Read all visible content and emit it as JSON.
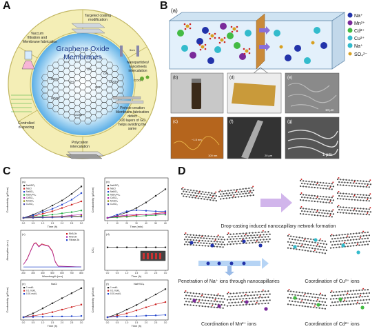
{
  "panels": {
    "A": "A",
    "B": "B",
    "C": "C",
    "D": "D"
  },
  "panelA": {
    "center_title_1": "Graphene Oxide",
    "center_title_2": "Membranes",
    "sectors": [
      "Targeted coating\nmodification",
      "Vaccum\nfiltration and\nMembrane fabrication",
      "Nanoparticles/\nnanosheets\nintercalation",
      "Pinhole creation\nMembrane fabrication\ndefect\n>20 layers of GO\nhelps avoiding the\nsame",
      "Polycation\nintercalation",
      "Controlled\nd-spacing"
    ],
    "ring_labels": [
      "Membrane fabrication",
      "Nanoparticle intercalation",
      "Pinhole creation",
      "Polycation intercalation",
      "Controlled d-spacing"
    ],
    "groups": [
      "OH",
      "OH",
      "COOH",
      "HOOC",
      "HOOC",
      "COOH",
      "COOH",
      "OH",
      "OH"
    ],
    "nm_label": "5nm"
  },
  "panelB": {
    "sub": [
      "(a)",
      "(b)",
      "(c)",
      "(d)",
      "(e)",
      "(f)",
      "(g)"
    ],
    "legend": [
      "Na⁺",
      "Mn²⁺",
      "Cd²⁺",
      "Cu²⁺",
      "Na⁺",
      "SO₄²⁻"
    ],
    "legend_colors": [
      "#2233aa",
      "#7a2a9a",
      "#44bb44",
      "#33bbcc",
      "#33bbcc",
      "#d8a020"
    ],
    "scale": [
      "10 μm",
      "20 μm",
      "1 μm",
      "100 nm"
    ],
    "afm_label": "~1.5 nm"
  },
  "panelC": {
    "sub": [
      "(a)",
      "(b)",
      "(c)",
      "(d)",
      "(e)",
      "(f)"
    ],
    "ylabel_cond": "Conductivity (μS/cm)",
    "xlabel_time": "Time (h)",
    "xlabel_wave": "Wavelength (nm)",
    "ylabel_abs": "Absorption (a.u.)",
    "ylabel_ratio": "C/C₀",
    "legend_a": [
      "NaHSO₄",
      "NaCl",
      "NaNO₃",
      "NaH₂PO₄",
      "CdSO₄",
      "MnSO₄",
      "CuSO₄"
    ],
    "legend_c": [
      "RhB-0h",
      "RhB-3h",
      "Filtrate-3h"
    ],
    "legend_e": [
      "1 mol/L",
      "0.1 mol/L",
      "0.01 mol/L"
    ],
    "legend_f": [
      "1 mol/L",
      "0.1 mol/L",
      "0.01 mol/L"
    ],
    "salt_e": "NaCl",
    "salt_f": "NaHSO₄",
    "xticks_time": [
      "0.0",
      "0.5",
      "1.0",
      "1.5",
      "2.0",
      "2.5",
      "3.0"
    ],
    "xticks_min": [
      "0",
      "10",
      "20",
      "30",
      "40",
      "50",
      "60"
    ],
    "xlabel_min": "Time (min)",
    "xticks_wave": [
      "200",
      "300",
      "400",
      "500",
      "600",
      "700",
      "800"
    ],
    "yticks_ratio": [
      "0.0",
      "0.5",
      "1.0",
      "1.5"
    ]
  },
  "panelD": {
    "caption_1": "Drop-casting induced nanocapillary network formation",
    "caption_2": "Penetration of Na⁺ ions through nanocapillaries",
    "caption_3": "Coordination of Cu²⁺ ions",
    "caption_4": "Coordination of Mn²⁺ ions",
    "caption_5": "Coordination of Cd²⁺ ions"
  },
  "colors": {
    "ring": "#f3ecb0",
    "sector_border": "#c9bf6a",
    "blue": "#3a6fd8",
    "red": "#cc2222",
    "black": "#222"
  }
}
